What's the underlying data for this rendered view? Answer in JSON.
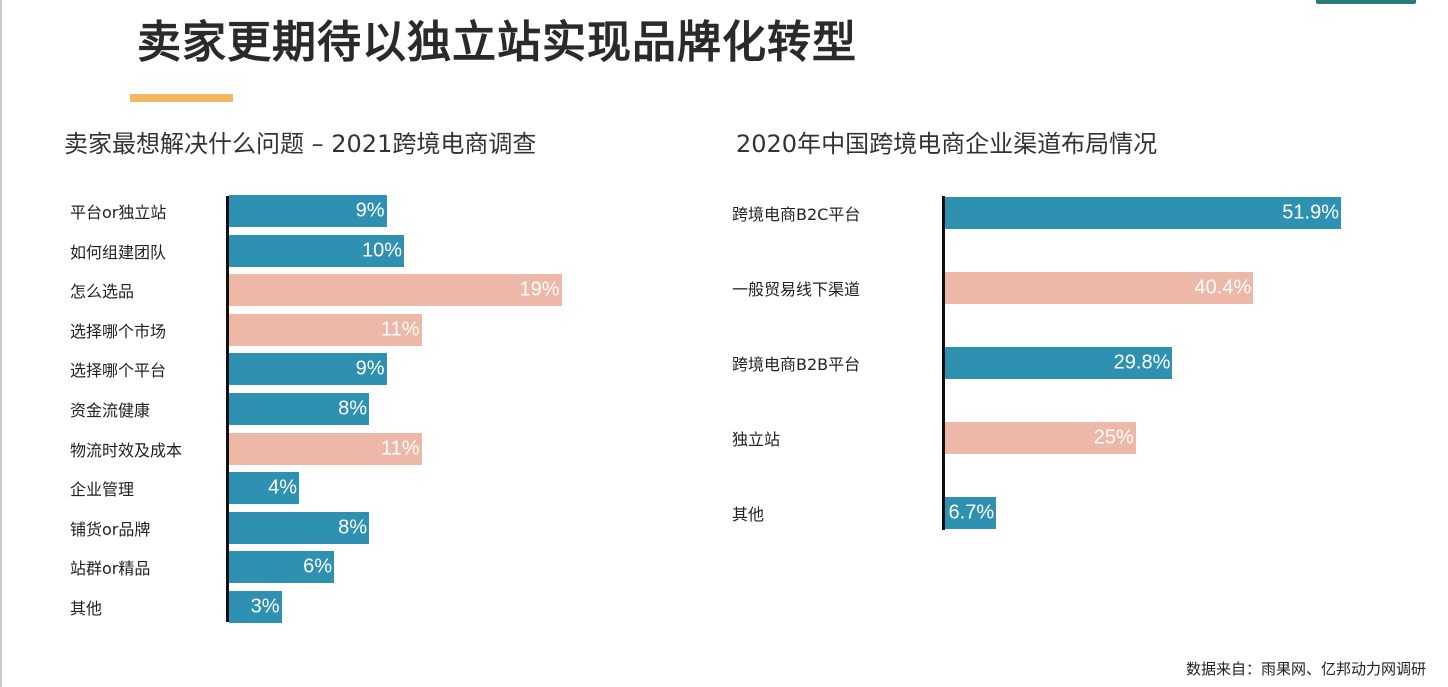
{
  "title": "卖家更期待以独立站实现品牌化转型",
  "footnote": "数据来自：雨果网、亿邦动力网调研",
  "colors": {
    "blue": "#2e91b2",
    "pink": "#eeb8a8",
    "accent": "#f3b860"
  },
  "chart_data": [
    {
      "type": "bar",
      "orientation": "horizontal",
      "title": "卖家最想解决什么问题 – 2021跨境电商调查",
      "unit": "%",
      "categories": [
        "平台or独立站",
        "如何组建团队",
        "怎么选品",
        "选择哪个市场",
        "选择哪个平台",
        "资金流健康",
        "物流时效及成本",
        "企业管理",
        "铺货or品牌",
        "站群or精品",
        "其他"
      ],
      "values": [
        9,
        10,
        19,
        11,
        9,
        8,
        11,
        4,
        8,
        6,
        3
      ],
      "labels": [
        "9%",
        "10%",
        "19%",
        "11%",
        "9%",
        "8%",
        "11%",
        "4%",
        "8%",
        "6%",
        "3%"
      ],
      "colors": [
        "blue",
        "blue",
        "pink",
        "pink",
        "blue",
        "blue",
        "pink",
        "blue",
        "blue",
        "blue",
        "blue"
      ]
    },
    {
      "type": "bar",
      "orientation": "horizontal",
      "title": "2020年中国跨境电商企业渠道布局情况",
      "unit": "%",
      "categories": [
        "跨境电商B2C平台",
        "一般贸易线下渠道",
        "跨境电商B2B平台",
        "独立站",
        "其他"
      ],
      "values": [
        51.9,
        40.4,
        29.8,
        25,
        6.7
      ],
      "labels": [
        "51.9%",
        "40.4%",
        "29.8%",
        "25%",
        "6.7%"
      ],
      "colors": [
        "blue",
        "pink",
        "blue",
        "pink",
        "blue"
      ]
    }
  ]
}
